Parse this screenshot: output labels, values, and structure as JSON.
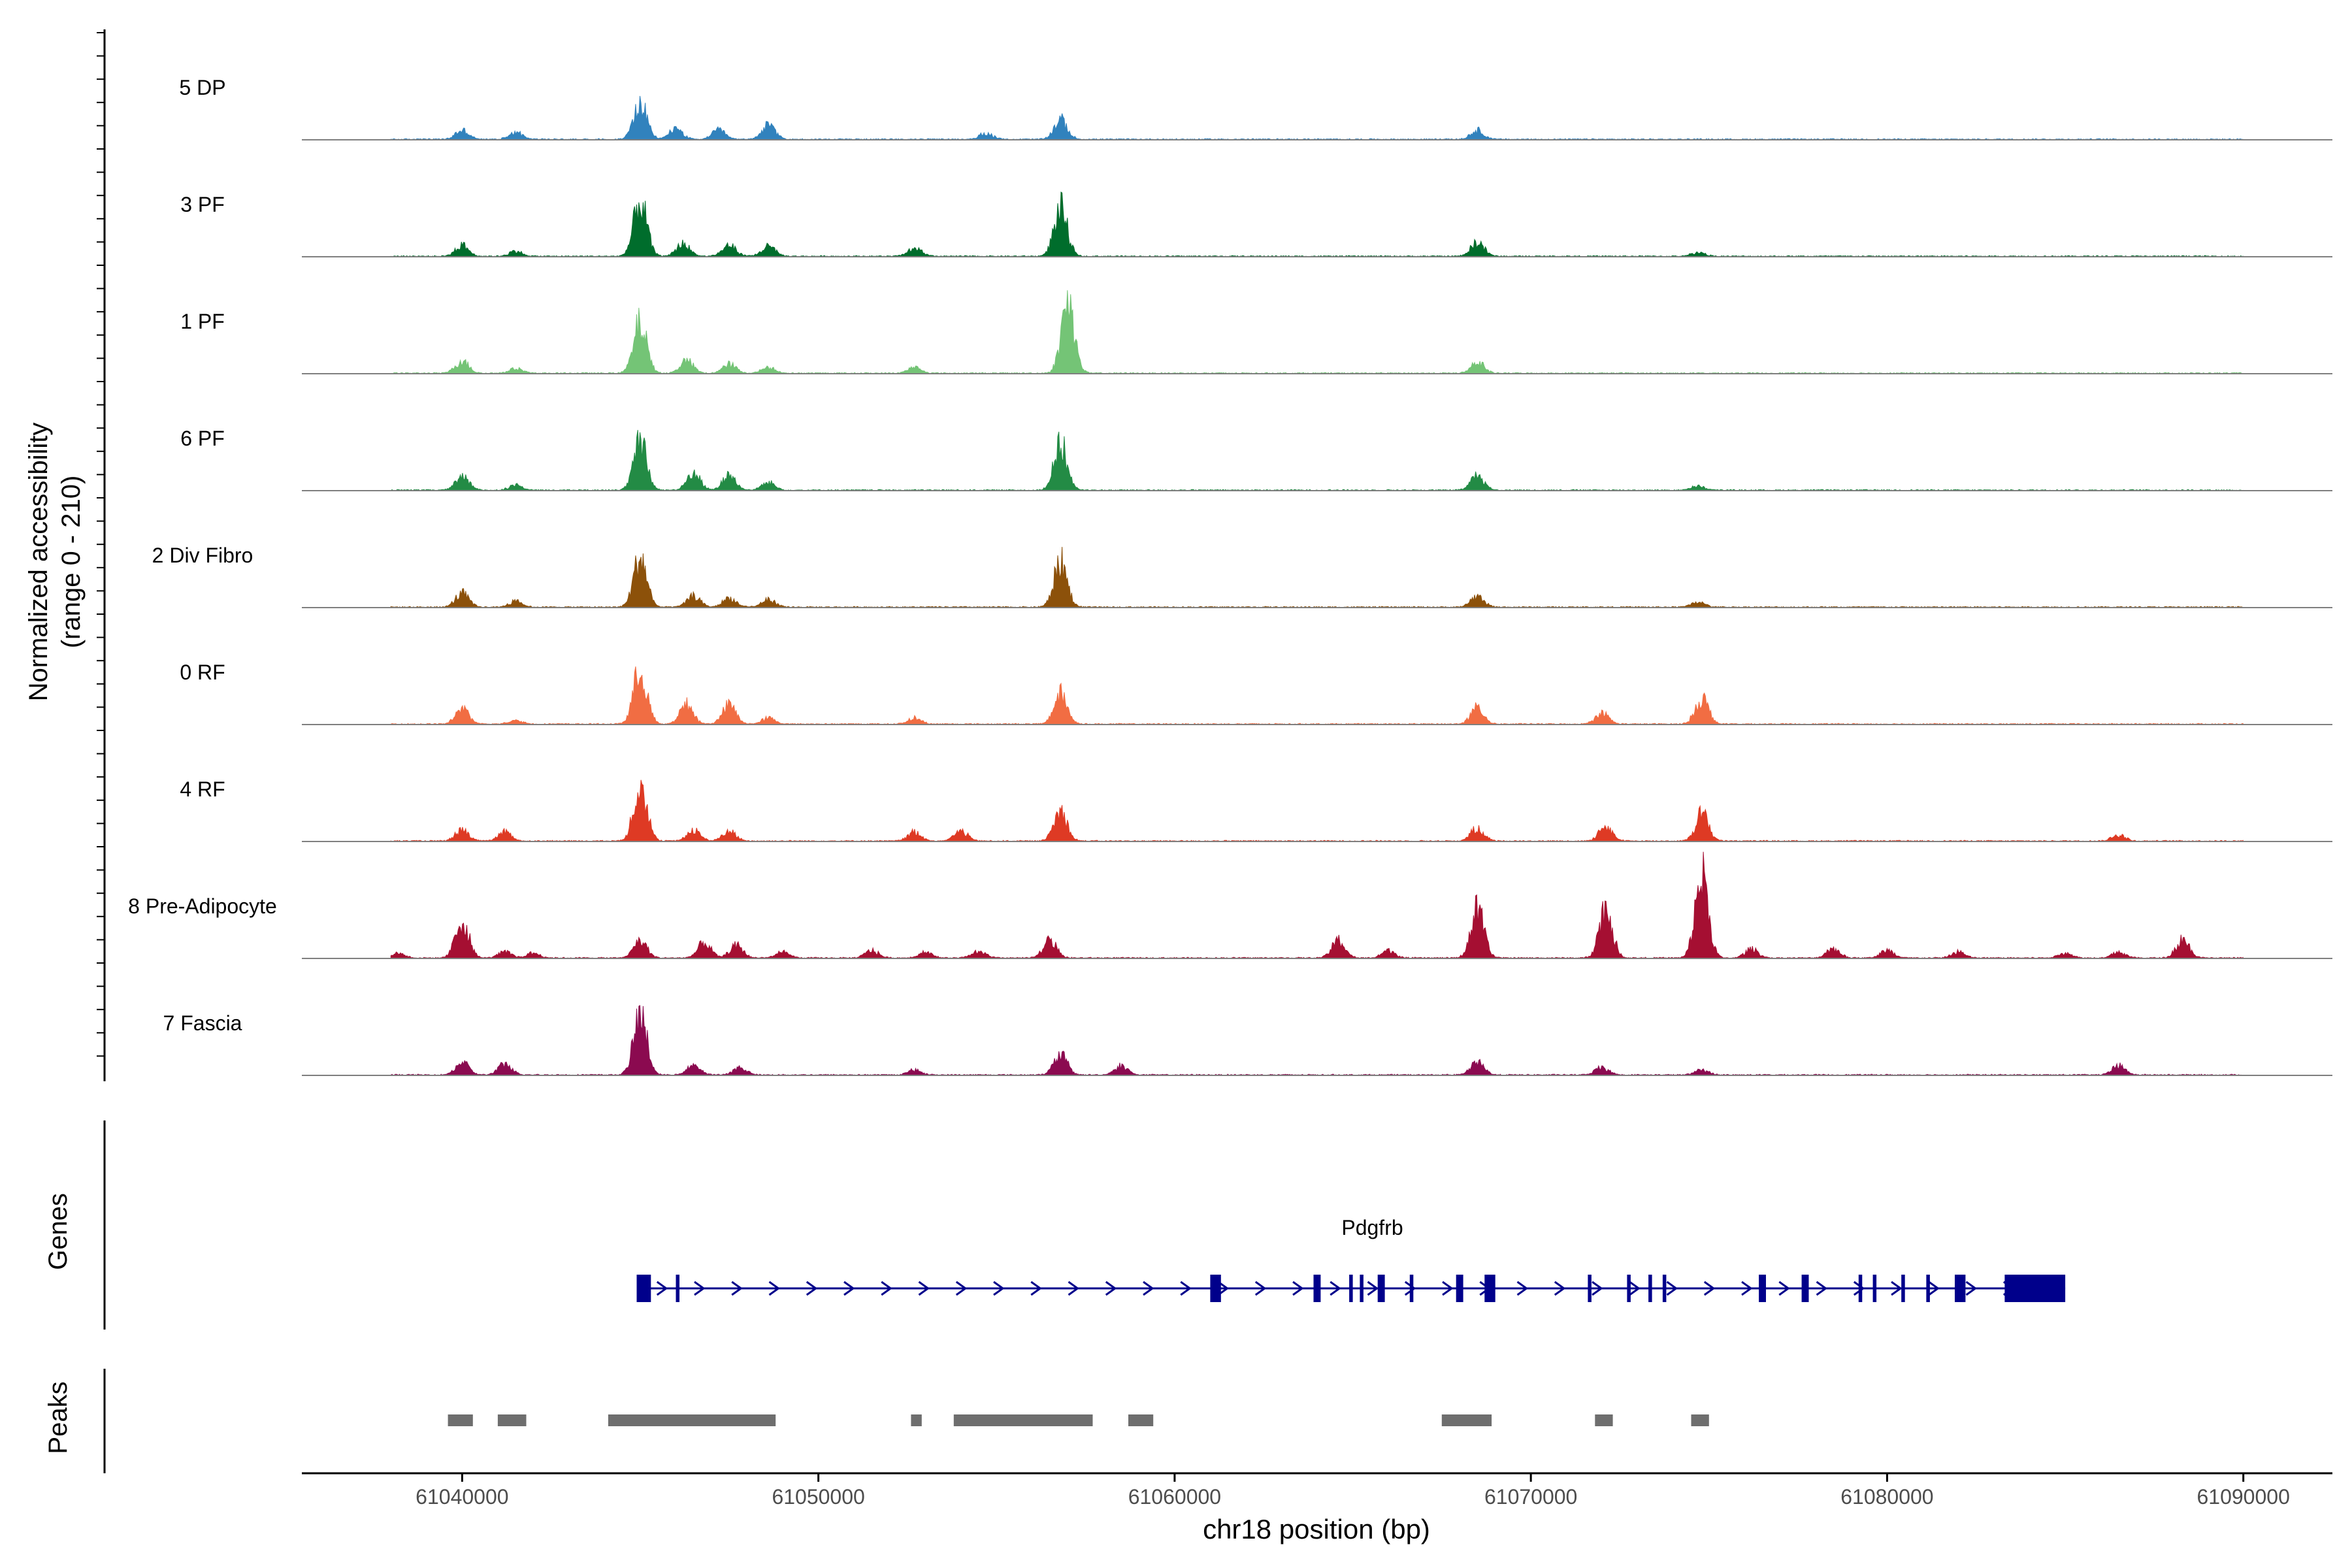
{
  "chart_data": {
    "type": "area",
    "title": "",
    "xlabel": "chr18 position (bp)",
    "ylabel_line1": "Normalized accessibility",
    "ylabel_line2": "(range 0 - 210)",
    "genes_label": "Genes",
    "peaks_label": "Peaks",
    "xlim": [
      61035500,
      61092500
    ],
    "x_ticks": [
      61040000,
      61050000,
      61060000,
      61070000,
      61080000,
      61090000
    ],
    "x_tick_labels": [
      "61040000",
      "61050000",
      "61060000",
      "61070000",
      "61080000",
      "61090000"
    ],
    "ylim": [
      0,
      210
    ],
    "track_start": 61038000,
    "track_end": 61090000,
    "tracks": [
      {
        "name": "5 DP",
        "color": "#3182bd",
        "peaks": [
          [
            61040000,
            18
          ],
          [
            61041500,
            15
          ],
          [
            61045000,
            70
          ],
          [
            61046000,
            22
          ],
          [
            61047200,
            18
          ],
          [
            61048600,
            28
          ],
          [
            61054700,
            12
          ],
          [
            61056800,
            38
          ],
          [
            61068500,
            18
          ]
        ]
      },
      {
        "name": "3 PF",
        "color": "#006d2c",
        "peaks": [
          [
            61040000,
            22
          ],
          [
            61041500,
            10
          ],
          [
            61045000,
            110
          ],
          [
            61046200,
            25
          ],
          [
            61047500,
            22
          ],
          [
            61048600,
            20
          ],
          [
            61052700,
            18
          ],
          [
            61056800,
            95
          ],
          [
            61068500,
            28
          ],
          [
            61074700,
            8
          ]
        ]
      },
      {
        "name": "1 PF",
        "color": "#74c476",
        "peaks": [
          [
            61040000,
            25
          ],
          [
            61041500,
            10
          ],
          [
            61045000,
            100
          ],
          [
            61046300,
            25
          ],
          [
            61047500,
            18
          ],
          [
            61048600,
            12
          ],
          [
            61052700,
            12
          ],
          [
            61057000,
            140
          ],
          [
            61068500,
            22
          ]
        ]
      },
      {
        "name": "6 PF",
        "color": "#238b45",
        "peaks": [
          [
            61040000,
            28
          ],
          [
            61041500,
            10
          ],
          [
            61045000,
            95
          ],
          [
            61046500,
            35
          ],
          [
            61047500,
            30
          ],
          [
            61048600,
            15
          ],
          [
            61056800,
            90
          ],
          [
            61068500,
            30
          ],
          [
            61074700,
            8
          ]
        ]
      },
      {
        "name": "2 Div Fibro",
        "color": "#8c510a",
        "peaks": [
          [
            61040000,
            28
          ],
          [
            61041500,
            12
          ],
          [
            61045000,
            100
          ],
          [
            61046500,
            22
          ],
          [
            61047500,
            18
          ],
          [
            61048600,
            15
          ],
          [
            61056800,
            90
          ],
          [
            61068500,
            22
          ],
          [
            61074700,
            10
          ]
        ]
      },
      {
        "name": "0 RF",
        "color": "#f16d43",
        "peaks": [
          [
            61040000,
            30
          ],
          [
            61041500,
            8
          ],
          [
            61045000,
            110
          ],
          [
            61046300,
            40
          ],
          [
            61047500,
            38
          ],
          [
            61048600,
            12
          ],
          [
            61052700,
            12
          ],
          [
            61056800,
            60
          ],
          [
            61068500,
            32
          ],
          [
            61072000,
            22
          ],
          [
            61074800,
            52
          ]
        ]
      },
      {
        "name": "4 RF",
        "color": "#de3a24",
        "peaks": [
          [
            61040000,
            22
          ],
          [
            61041200,
            18
          ],
          [
            61045000,
            120
          ],
          [
            61046500,
            22
          ],
          [
            61047500,
            20
          ],
          [
            61052700,
            18
          ],
          [
            61054000,
            20
          ],
          [
            61056800,
            60
          ],
          [
            61068500,
            25
          ],
          [
            61072100,
            30
          ],
          [
            61074800,
            55
          ],
          [
            61086500,
            12
          ]
        ]
      },
      {
        "name": "8 Pre-Adipocyte",
        "color": "#a50f32",
        "peaks": [
          [
            61038200,
            10
          ],
          [
            61040000,
            75
          ],
          [
            61041200,
            12
          ],
          [
            61042000,
            10
          ],
          [
            61045000,
            35
          ],
          [
            61046800,
            30
          ],
          [
            61047700,
            25
          ],
          [
            61049000,
            12
          ],
          [
            61051500,
            15
          ],
          [
            61053000,
            12
          ],
          [
            61054500,
            15
          ],
          [
            61056500,
            35
          ],
          [
            61064600,
            35
          ],
          [
            61066000,
            15
          ],
          [
            61068500,
            95
          ],
          [
            61072100,
            100
          ],
          [
            61074800,
            165
          ],
          [
            61076200,
            18
          ],
          [
            61078500,
            18
          ],
          [
            61080000,
            15
          ],
          [
            61082000,
            12
          ],
          [
            61085000,
            10
          ],
          [
            61086500,
            12
          ],
          [
            61088300,
            38
          ]
        ]
      },
      {
        "name": "7 Fascia",
        "color": "#8b0a50",
        "peaks": [
          [
            61040000,
            25
          ],
          [
            61041200,
            22
          ],
          [
            61045000,
            120
          ],
          [
            61046500,
            18
          ],
          [
            61047800,
            15
          ],
          [
            61052700,
            10
          ],
          [
            61056800,
            40
          ],
          [
            61058500,
            18
          ],
          [
            61068500,
            25
          ],
          [
            61072000,
            15
          ],
          [
            61074800,
            10
          ],
          [
            61086500,
            18
          ]
        ]
      }
    ],
    "gene": {
      "name": "Pdgfrb",
      "color": "#00008b",
      "start": 61044900,
      "end": 61085000,
      "exons": [
        [
          61044900,
          61045300
        ],
        [
          61046000,
          61046100
        ],
        [
          61061000,
          61061300
        ],
        [
          61063900,
          61064100
        ],
        [
          61064900,
          61065000
        ],
        [
          61065200,
          61065300
        ],
        [
          61065700,
          61065900
        ],
        [
          61066600,
          61066700
        ],
        [
          61067900,
          61068100
        ],
        [
          61068700,
          61069000
        ],
        [
          61071600,
          61071700
        ],
        [
          61072700,
          61072800
        ],
        [
          61073300,
          61073400
        ],
        [
          61073700,
          61073800
        ],
        [
          61076400,
          61076600
        ],
        [
          61077600,
          61077800
        ],
        [
          61079200,
          61079300
        ],
        [
          61079600,
          61079700
        ],
        [
          61080400,
          61080500
        ],
        [
          61081100,
          61081200
        ],
        [
          61081900,
          61082200
        ],
        [
          61083300,
          61085000
        ]
      ]
    },
    "peak_regions": [
      [
        61039600,
        61040300
      ],
      [
        61041000,
        61041800
      ],
      [
        61044100,
        61048800
      ],
      [
        61052600,
        61052900
      ],
      [
        61053800,
        61057700
      ],
      [
        61058700,
        61059400
      ],
      [
        61067500,
        61068900
      ],
      [
        61071800,
        61072300
      ],
      [
        61074500,
        61075000
      ]
    ]
  }
}
